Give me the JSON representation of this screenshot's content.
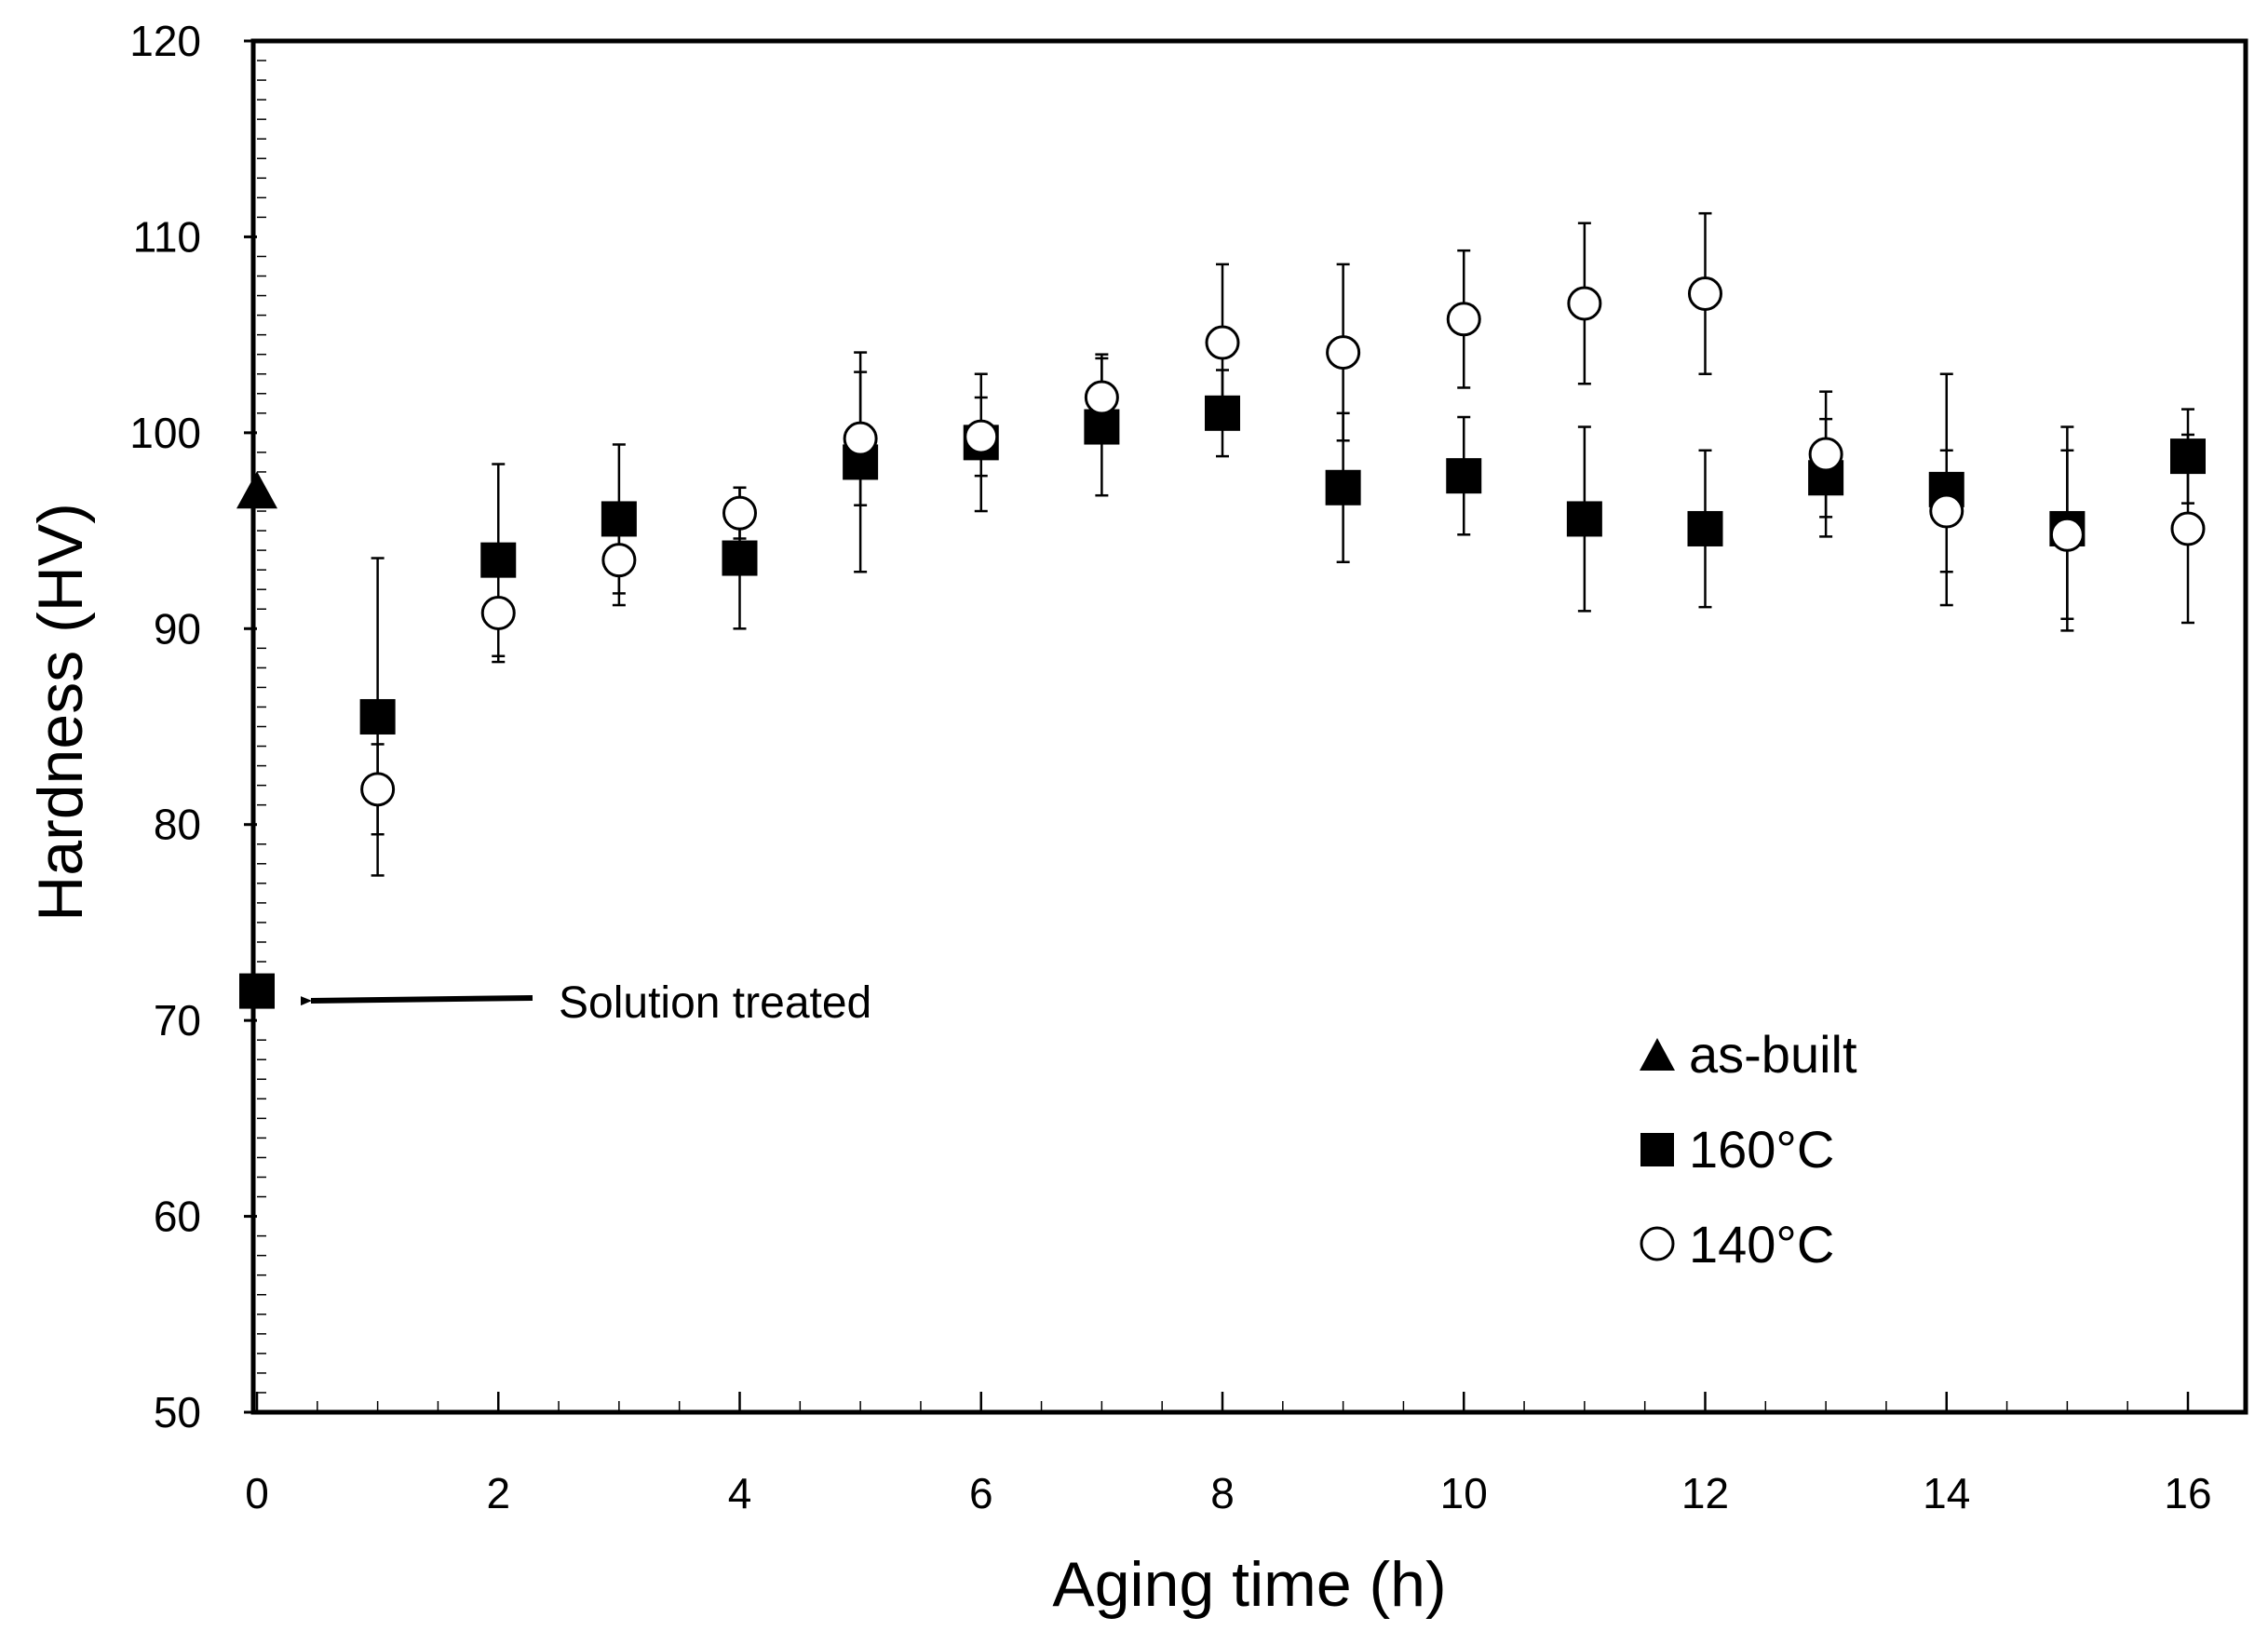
{
  "chart_data": {
    "type": "scatter",
    "title": "",
    "xlabel": "Aging time (h)",
    "ylabel": "Hardness (HV)",
    "xlim": [
      0,
      16
    ],
    "ylim": [
      50,
      120
    ],
    "xticks": [
      0,
      2,
      4,
      6,
      8,
      10,
      12,
      14,
      16
    ],
    "yticks": [
      50,
      60,
      70,
      80,
      90,
      100,
      110,
      120
    ],
    "xtick_labels": [
      "0",
      "2",
      "4",
      "6",
      "8",
      "10",
      "12",
      "14",
      "16"
    ],
    "ytick_labels": [
      "50",
      "60",
      "70",
      "80",
      "90",
      "100",
      "110",
      "120"
    ],
    "grid": false,
    "legend_position": "bottom-right",
    "series": [
      {
        "name": "as-built",
        "marker": "filled-triangle",
        "x": [
          0
        ],
        "y": [
          96.8
        ],
        "err": [
          0
        ]
      },
      {
        "name": "160°C",
        "marker": "filled-square",
        "x": [
          0,
          1,
          2,
          3,
          4,
          5,
          6,
          7,
          8,
          9,
          10,
          11,
          12,
          13,
          14,
          15,
          16
        ],
        "y": [
          71.5,
          85.5,
          93.5,
          95.6,
          93.6,
          98.5,
          99.5,
          100.3,
          101.0,
          97.2,
          97.8,
          95.6,
          95.1,
          97.7,
          97.1,
          95.1,
          98.8
        ],
        "err": [
          0,
          8.1,
          4.9,
          3.8,
          3.6,
          5.6,
          3.5,
          3.5,
          2.2,
          3.8,
          3.0,
          4.7,
          4.0,
          3.0,
          5.9,
          5.2,
          2.4
        ]
      },
      {
        "name": "140°C",
        "marker": "open-circle",
        "x": [
          1,
          2,
          3,
          4,
          5,
          6,
          7,
          8,
          9,
          10,
          11,
          12,
          13,
          14,
          15,
          16
        ],
        "y": [
          81.8,
          90.8,
          93.5,
          95.9,
          99.7,
          99.8,
          101.8,
          104.6,
          104.1,
          105.8,
          106.6,
          107.1,
          98.9,
          96.0,
          94.8,
          95.1
        ],
        "err": [
          2.3,
          2.5,
          2.3,
          1.3,
          3.4,
          2.0,
          2.2,
          4.0,
          4.5,
          3.5,
          4.1,
          4.1,
          3.2,
          3.1,
          4.3,
          4.8
        ]
      }
    ],
    "annotations": [
      {
        "text": "Solution treated",
        "points_to": {
          "x": 0,
          "y": 71.5
        }
      }
    ]
  },
  "colors": {
    "marker": "#000000",
    "background": "#ffffff"
  }
}
